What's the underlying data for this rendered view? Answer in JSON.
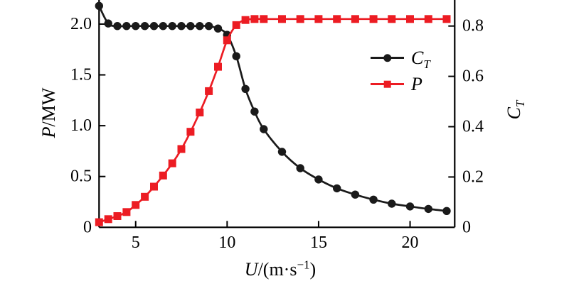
{
  "figure": {
    "background": "#ffffff"
  },
  "colors": {
    "ct_series": "#1a1a1a",
    "p_series": "#ec1c23",
    "axis": "#000000",
    "text": "#000000"
  },
  "labels": {
    "y_left": {
      "italic": "P",
      "normal": "/MW"
    },
    "y_right": {
      "italic": "C",
      "sub": "T"
    },
    "x": {
      "italic": "U",
      "normal": "/(m·s",
      "sup": "−1",
      "close": ")"
    },
    "legend_ct": {
      "italic": "C",
      "sub": "T"
    },
    "legend_p": {
      "italic": "P"
    }
  },
  "chart_data": {
    "type": "line",
    "title": "",
    "xlabel": "U/(m·s⁻¹)",
    "ylabel_left": "P/MW",
    "ylabel_right": "C_T",
    "grid": false,
    "legend": {
      "position": "inside-upper-right",
      "items": [
        "C_T",
        "P"
      ]
    },
    "x_axis": {
      "range": [
        3,
        22.44
      ],
      "ticks": [
        5,
        10,
        15,
        20
      ],
      "tick_labels": [
        "5",
        "10",
        "15",
        "20"
      ]
    },
    "y_axis_left": {
      "range": [
        0,
        2.237
      ],
      "ticks": [
        0,
        0.5,
        1.0,
        1.5,
        2.0
      ],
      "tick_labels": [
        "0",
        "0.5",
        "1.0",
        "1.5",
        "2.0"
      ]
    },
    "y_axis_right": {
      "range": [
        0,
        0.9035
      ],
      "ticks": [
        0,
        0.2,
        0.4,
        0.6,
        0.8
      ],
      "tick_labels": [
        "0",
        "0.2",
        "0.4",
        "0.6",
        "0.8"
      ]
    },
    "x": [
      3,
      3.5,
      4,
      4.5,
      5,
      5.5,
      6,
      6.5,
      7,
      7.5,
      8,
      8.5,
      9,
      9.5,
      10,
      10.5,
      11,
      11.5,
      12,
      13,
      14,
      15,
      16,
      17,
      18,
      19,
      20,
      21,
      22
    ],
    "series": [
      {
        "name": "C_T",
        "axis": "right",
        "marker": "circle",
        "color": "#1a1a1a",
        "values": [
          0.88,
          0.81,
          0.8,
          0.8,
          0.8,
          0.8,
          0.8,
          0.8,
          0.8,
          0.8,
          0.8,
          0.8,
          0.8,
          0.79,
          0.765,
          0.68,
          0.55,
          0.46,
          0.39,
          0.3,
          0.235,
          0.19,
          0.155,
          0.13,
          0.11,
          0.094,
          0.083,
          0.073,
          0.065
        ]
      },
      {
        "name": "P",
        "axis": "left",
        "marker": "square",
        "color": "#ec1c23",
        "values": [
          0.05,
          0.08,
          0.11,
          0.15,
          0.22,
          0.3,
          0.4,
          0.51,
          0.63,
          0.77,
          0.94,
          1.13,
          1.34,
          1.58,
          1.84,
          1.99,
          2.04,
          2.05,
          2.05,
          2.05,
          2.05,
          2.05,
          2.05,
          2.05,
          2.05,
          2.05,
          2.05,
          2.05,
          2.05
        ]
      }
    ]
  }
}
